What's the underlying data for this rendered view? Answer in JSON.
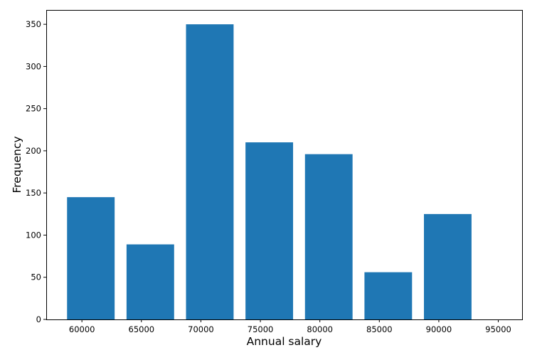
{
  "chart_data": {
    "type": "bar",
    "title": "",
    "xlabel": "Annual salary",
    "ylabel": "Frequency",
    "bin_edges": [
      58750,
      62750,
      63750,
      67750,
      68750,
      72750,
      73750,
      77750,
      78750,
      82750,
      83750,
      87750,
      88750,
      92750
    ],
    "categories": [
      "60000",
      "65000",
      "70000",
      "75000",
      "80000",
      "85000",
      "90000"
    ],
    "bars": [
      {
        "left": 58750,
        "right": 62750,
        "value": 145
      },
      {
        "left": 63750,
        "right": 67750,
        "value": 89
      },
      {
        "left": 68750,
        "right": 72750,
        "value": 350
      },
      {
        "left": 73750,
        "right": 77750,
        "value": 210
      },
      {
        "left": 78750,
        "right": 82750,
        "value": 196
      },
      {
        "left": 83750,
        "right": 87750,
        "value": 56
      },
      {
        "left": 88750,
        "right": 92750,
        "value": 125
      }
    ],
    "xlim": [
      57000,
      97000
    ],
    "ylim": [
      0,
      367
    ],
    "xticks": [
      60000,
      65000,
      70000,
      75000,
      80000,
      85000,
      90000,
      95000
    ],
    "xtick_labels": [
      "60000",
      "65000",
      "70000",
      "75000",
      "80000",
      "85000",
      "90000",
      "95000"
    ],
    "yticks": [
      0,
      50,
      100,
      150,
      200,
      250,
      300,
      350
    ],
    "ytick_labels": [
      "0",
      "50",
      "100",
      "150",
      "200",
      "250",
      "300",
      "350"
    ],
    "grid": false,
    "bar_color": "#1f77b4"
  }
}
